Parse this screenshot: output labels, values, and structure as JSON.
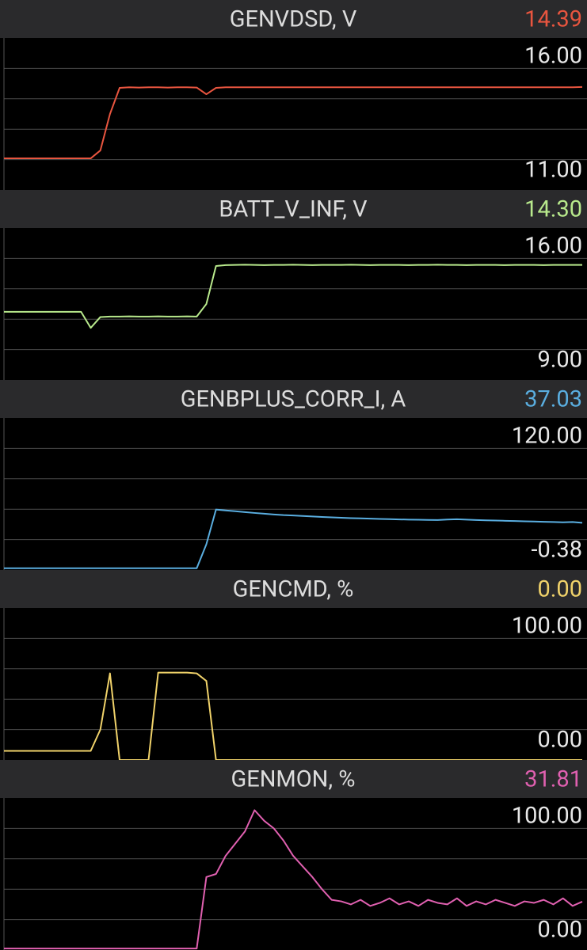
{
  "chart_data": [
    {
      "type": "line",
      "title": "GENVDSD, V",
      "current": {
        "value": 14.39,
        "label": "14.39"
      },
      "color": "#e8553f",
      "values": [
        12.04,
        12.04,
        12.04,
        12.04,
        12.04,
        12.04,
        12.04,
        12.04,
        12.04,
        12.04,
        12.3,
        13.5,
        14.36,
        14.38,
        14.37,
        14.38,
        14.38,
        14.37,
        14.38,
        14.38,
        14.37,
        14.15,
        14.36,
        14.38,
        14.38,
        14.38,
        14.38,
        14.38,
        14.38,
        14.38,
        14.38,
        14.38,
        14.38,
        14.38,
        14.38,
        14.38,
        14.38,
        14.38,
        14.38,
        14.38,
        14.38,
        14.38,
        14.38,
        14.38,
        14.38,
        14.38,
        14.38,
        14.38,
        14.38,
        14.38,
        14.38,
        14.38,
        14.38,
        14.38,
        14.38,
        14.38,
        14.38,
        14.38,
        14.38,
        14.38,
        14.39
      ],
      "ylim": [
        11,
        16
      ],
      "yticks": [
        {
          "value": 16,
          "label": "16.00"
        },
        {
          "value": 11,
          "label": "11.00"
        }
      ],
      "grid": true
    },
    {
      "type": "line",
      "title": "BATT_V_INF, V",
      "current": {
        "value": 14.3,
        "label": "14.30"
      },
      "color": "#b8e98c",
      "values": [
        12.14,
        12.14,
        12.14,
        12.14,
        12.14,
        12.14,
        12.14,
        12.14,
        12.14,
        11.4,
        11.9,
        11.92,
        11.92,
        11.93,
        11.92,
        11.92,
        11.93,
        11.92,
        11.92,
        11.93,
        11.92,
        12.5,
        14.25,
        14.29,
        14.3,
        14.31,
        14.3,
        14.29,
        14.3,
        14.3,
        14.31,
        14.3,
        14.29,
        14.3,
        14.3,
        14.3,
        14.31,
        14.3,
        14.29,
        14.3,
        14.3,
        14.3,
        14.29,
        14.3,
        14.3,
        14.31,
        14.3,
        14.3,
        14.29,
        14.3,
        14.3,
        14.3,
        14.29,
        14.3,
        14.3,
        14.3,
        14.29,
        14.3,
        14.3,
        14.3,
        14.3
      ],
      "ylim": [
        9,
        16
      ],
      "yticks": [
        {
          "value": 16,
          "label": "16.00"
        },
        {
          "value": 9,
          "label": "9.00"
        }
      ],
      "grid": true
    },
    {
      "type": "line",
      "title": "GENBPLUS_CORR_I, A",
      "current": {
        "value": 37.03,
        "label": "37.03"
      },
      "color": "#5aaee0",
      "values": [
        1,
        1,
        1,
        1,
        1,
        1,
        1,
        1,
        1,
        1,
        1,
        1,
        1,
        1,
        1,
        1,
        1,
        1,
        1,
        1,
        1,
        20,
        47.5,
        46.8,
        46.2,
        45.5,
        44.8,
        44.2,
        43.6,
        43.1,
        42.8,
        42.4,
        42.0,
        41.6,
        41.3,
        41.0,
        40.7,
        40.5,
        40.3,
        40.1,
        39.9,
        39.7,
        39.5,
        39.4,
        39.3,
        39.2,
        39.6,
        39.8,
        39.5,
        39.2,
        39.0,
        38.8,
        38.6,
        38.4,
        38.2,
        38.0,
        37.8,
        37.6,
        37.4,
        37.6,
        37.03
      ],
      "ylim": [
        -0.38,
        120
      ],
      "yticks": [
        {
          "value": 120,
          "label": "120.00"
        },
        {
          "value": -0.38,
          "label": "-0.38"
        }
      ],
      "grid": true
    },
    {
      "type": "line",
      "title": "GENCMD, %",
      "current": {
        "value": 0,
        "label": "0.00"
      },
      "color": "#f0d26a",
      "values": [
        6,
        6,
        6,
        6,
        6,
        6,
        6,
        6,
        6,
        6,
        20,
        57,
        0,
        0,
        0,
        0,
        57.5,
        57.5,
        57.5,
        57.5,
        57,
        52,
        0,
        0,
        0,
        0,
        0,
        0,
        0,
        0,
        0,
        0,
        0,
        0,
        0,
        0,
        0,
        0,
        0,
        0,
        0,
        0,
        0,
        0,
        0,
        0,
        0,
        0,
        0,
        0,
        0,
        0,
        0,
        0,
        0,
        0,
        0,
        0,
        0,
        0,
        0
      ],
      "ylim": [
        0,
        100
      ],
      "yticks": [
        {
          "value": 100,
          "label": "100.00"
        },
        {
          "value": 0,
          "label": "0.00"
        }
      ],
      "grid": true
    },
    {
      "type": "line",
      "title": "GENMON, %",
      "current": {
        "value": 31.81,
        "label": "31.81"
      },
      "color": "#e060b0",
      "values": [
        1,
        1,
        1,
        1,
        1,
        1,
        1,
        1,
        1,
        1,
        1,
        1,
        1,
        1,
        1,
        1,
        1,
        1,
        1,
        1,
        1,
        48,
        50,
        62,
        70,
        78,
        92,
        85,
        80,
        72,
        62,
        55,
        48,
        40,
        33,
        32,
        30,
        33,
        29,
        31,
        34,
        30,
        32,
        29,
        33,
        31,
        30,
        34,
        29,
        32,
        30,
        33,
        31,
        29,
        32,
        31,
        33,
        30,
        34,
        29,
        31.81
      ],
      "ylim": [
        0,
        100
      ],
      "yticks": [
        {
          "value": 100,
          "label": "100.00"
        },
        {
          "value": 0,
          "label": "0.00"
        }
      ],
      "grid": true
    }
  ]
}
